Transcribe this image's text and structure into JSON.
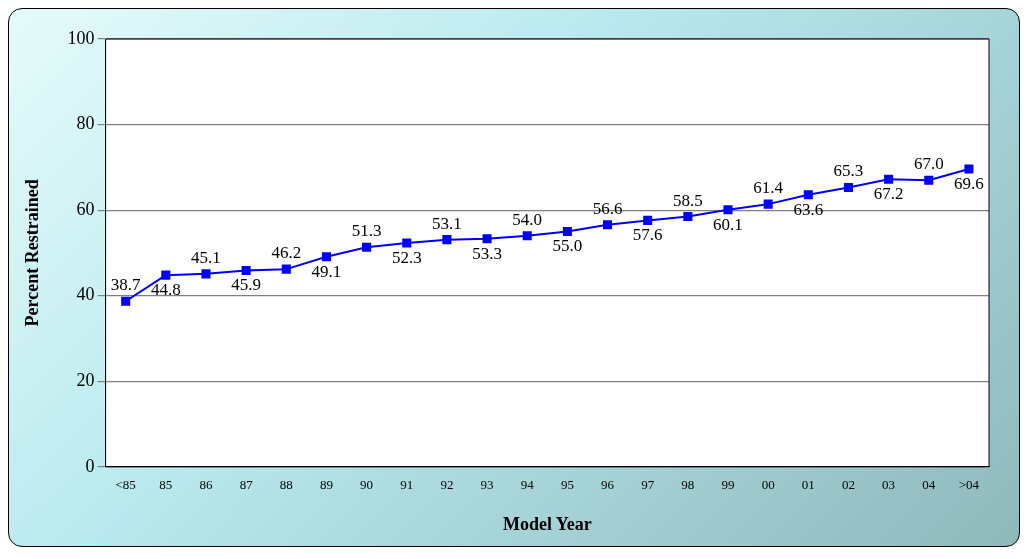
{
  "chart_data": {
    "type": "line",
    "xlabel": "Model Year",
    "ylabel": "Percent Restrained",
    "categories": [
      "<85",
      "85",
      "86",
      "87",
      "88",
      "89",
      "90",
      "91",
      "92",
      "93",
      "94",
      "95",
      "96",
      "97",
      "98",
      "99",
      "00",
      "01",
      "02",
      "03",
      "04",
      ">04"
    ],
    "series": [
      {
        "color": "#0000ff",
        "values": [
          38.7,
          44.8,
          45.1,
          45.9,
          46.2,
          49.1,
          51.3,
          52.3,
          53.1,
          53.3,
          54.0,
          55.0,
          56.6,
          57.6,
          58.5,
          60.1,
          61.4,
          63.6,
          65.3,
          67.2,
          67.0,
          69.6
        ],
        "value_labels": [
          "38.7",
          "44.8",
          "45.1",
          "45.9",
          "46.2",
          "49.1",
          "51.3",
          "52.3",
          "53.1",
          "53.3",
          "54.0",
          "55.0",
          "56.6",
          "57.6",
          "58.5",
          "60.1",
          "61.4",
          "63.6",
          "65.3",
          "67.2",
          "67.0",
          "69.6"
        ]
      }
    ],
    "ylim": [
      0,
      100
    ],
    "yticks": [
      0,
      20,
      40,
      60,
      80,
      100
    ],
    "grid": "y",
    "legend": false,
    "marker": "square",
    "line_style": "solid"
  }
}
